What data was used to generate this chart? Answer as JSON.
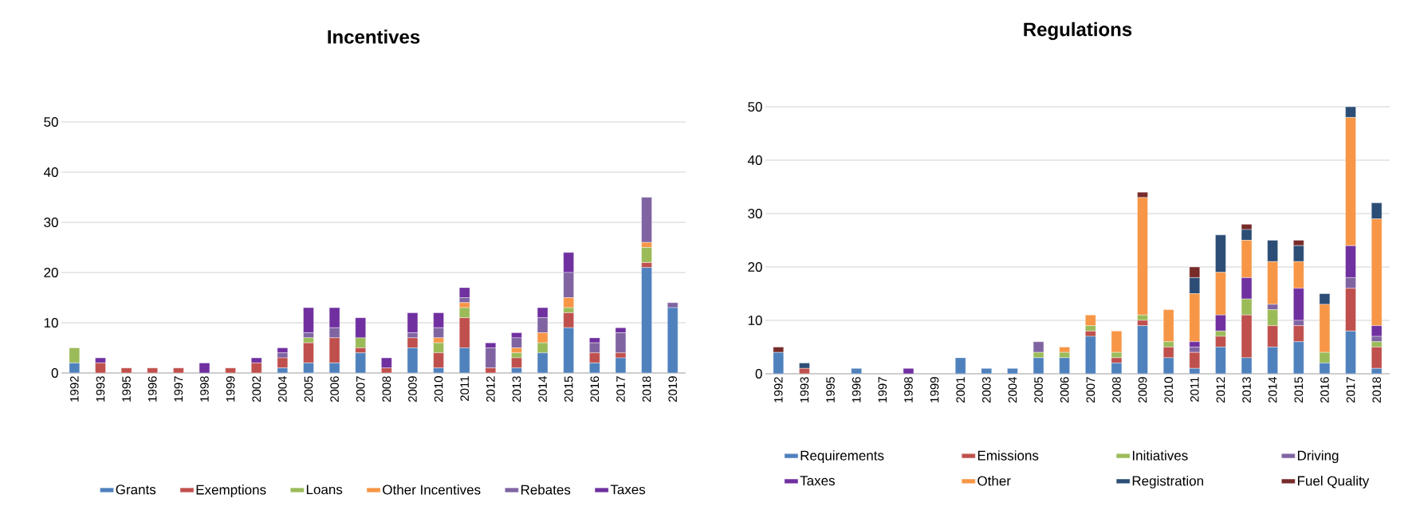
{
  "chart_data": [
    {
      "type": "bar",
      "title": "Incentives",
      "stacked": true,
      "grid": "y",
      "legend": "bottom",
      "categories": [
        "1992",
        "1993",
        "1995",
        "1996",
        "1997",
        "1998",
        "1999",
        "2002",
        "2004",
        "2005",
        "2006",
        "2007",
        "2008",
        "2009",
        "2010",
        "2011",
        "2012",
        "2013",
        "2014",
        "2015",
        "2016",
        "2017",
        "2018",
        "2019"
      ],
      "ylim": [
        0,
        50
      ],
      "yticks": [
        0,
        10,
        20,
        30,
        40,
        50
      ],
      "series": [
        {
          "name": "Grants",
          "color": "#4f81bd",
          "values": [
            2,
            0,
            0,
            0,
            0,
            0,
            0,
            0,
            1,
            2,
            2,
            4,
            0,
            5,
            1,
            5,
            0,
            1,
            4,
            9,
            2,
            3,
            21,
            13
          ]
        },
        {
          "name": "Exemptions",
          "color": "#c0504d",
          "values": [
            0,
            2,
            1,
            1,
            1,
            0,
            1,
            2,
            2,
            4,
            5,
            1,
            1,
            2,
            3,
            6,
            1,
            2,
            0,
            3,
            2,
            1,
            1,
            0
          ]
        },
        {
          "name": "Loans",
          "color": "#9bbb59",
          "values": [
            3,
            0,
            0,
            0,
            0,
            0,
            0,
            0,
            0,
            1,
            0,
            2,
            0,
            0,
            2,
            2,
            0,
            1,
            2,
            1,
            0,
            0,
            3,
            0
          ]
        },
        {
          "name": "Other Incentives",
          "color": "#f79646",
          "values": [
            0,
            0,
            0,
            0,
            0,
            0,
            0,
            0,
            0,
            0,
            0,
            0,
            0,
            0,
            1,
            1,
            0,
            1,
            2,
            2,
            0,
            0,
            1,
            0
          ]
        },
        {
          "name": "Rebates",
          "color": "#8064a2",
          "values": [
            0,
            0,
            0,
            0,
            0,
            0,
            0,
            0,
            1,
            1,
            2,
            0,
            0,
            1,
            2,
            1,
            4,
            2,
            3,
            5,
            2,
            4,
            9,
            1
          ]
        },
        {
          "name": "Taxes",
          "color": "#7030a0",
          "values": [
            0,
            1,
            0,
            0,
            0,
            2,
            0,
            1,
            1,
            5,
            4,
            4,
            2,
            4,
            3,
            2,
            1,
            1,
            2,
            4,
            1,
            1,
            0,
            0
          ]
        }
      ]
    },
    {
      "type": "bar",
      "title": "Regulations",
      "stacked": true,
      "grid": "y",
      "legend": "bottom",
      "categories": [
        "1992",
        "1993",
        "1995",
        "1996",
        "1997",
        "1998",
        "1999",
        "2001",
        "2003",
        "2004",
        "2005",
        "2006",
        "2007",
        "2008",
        "2009",
        "2010",
        "2011",
        "2012",
        "2013",
        "2014",
        "2015",
        "2016",
        "2017",
        "2018"
      ],
      "ylim": [
        0,
        50
      ],
      "yticks": [
        0,
        10,
        20,
        30,
        40,
        50
      ],
      "series": [
        {
          "name": "Requirements",
          "color": "#4f81bd",
          "values": [
            4,
            0,
            0,
            1,
            0,
            0,
            0,
            3,
            1,
            1,
            3,
            3,
            7,
            2,
            9,
            3,
            1,
            5,
            3,
            5,
            6,
            2,
            8,
            1
          ]
        },
        {
          "name": "Emissions",
          "color": "#c0504d",
          "values": [
            0,
            1,
            0,
            0,
            0,
            0,
            0,
            0,
            0,
            0,
            0,
            0,
            1,
            1,
            1,
            2,
            3,
            2,
            8,
            4,
            3,
            0,
            8,
            4
          ]
        },
        {
          "name": "Initiatives",
          "color": "#9bbb59",
          "values": [
            0,
            0,
            0,
            0,
            0,
            0,
            0,
            0,
            0,
            0,
            1,
            1,
            1,
            1,
            1,
            1,
            0,
            1,
            3,
            3,
            0,
            2,
            0,
            1
          ]
        },
        {
          "name": "Driving",
          "color": "#8064a2",
          "values": [
            0,
            0,
            0,
            0,
            0,
            0,
            0,
            0,
            0,
            0,
            2,
            0,
            0,
            0,
            0,
            0,
            1,
            0,
            0,
            1,
            1,
            0,
            2,
            1
          ]
        },
        {
          "name": "Taxes",
          "color": "#7030a0",
          "values": [
            0,
            0,
            0,
            0,
            0,
            1,
            0,
            0,
            0,
            0,
            0,
            0,
            0,
            0,
            0,
            0,
            1,
            3,
            4,
            0,
            6,
            0,
            6,
            2
          ]
        },
        {
          "name": "Other",
          "color": "#f79646",
          "values": [
            0,
            0,
            0,
            0,
            0,
            0,
            0,
            0,
            0,
            0,
            0,
            1,
            2,
            4,
            22,
            6,
            9,
            8,
            7,
            8,
            5,
            9,
            24,
            20
          ]
        },
        {
          "name": "Registration",
          "color": "#2c4d75",
          "values": [
            0,
            1,
            0,
            0,
            0,
            0,
            0,
            0,
            0,
            0,
            0,
            0,
            0,
            0,
            0,
            0,
            3,
            7,
            2,
            4,
            3,
            2,
            2,
            3
          ]
        },
        {
          "name": "Fuel Quality",
          "color": "#772c2a",
          "values": [
            1,
            0,
            0,
            0,
            0,
            0,
            0,
            0,
            0,
            0,
            0,
            0,
            0,
            0,
            1,
            0,
            2,
            0,
            1,
            0,
            1,
            0,
            0,
            0
          ]
        }
      ]
    }
  ]
}
